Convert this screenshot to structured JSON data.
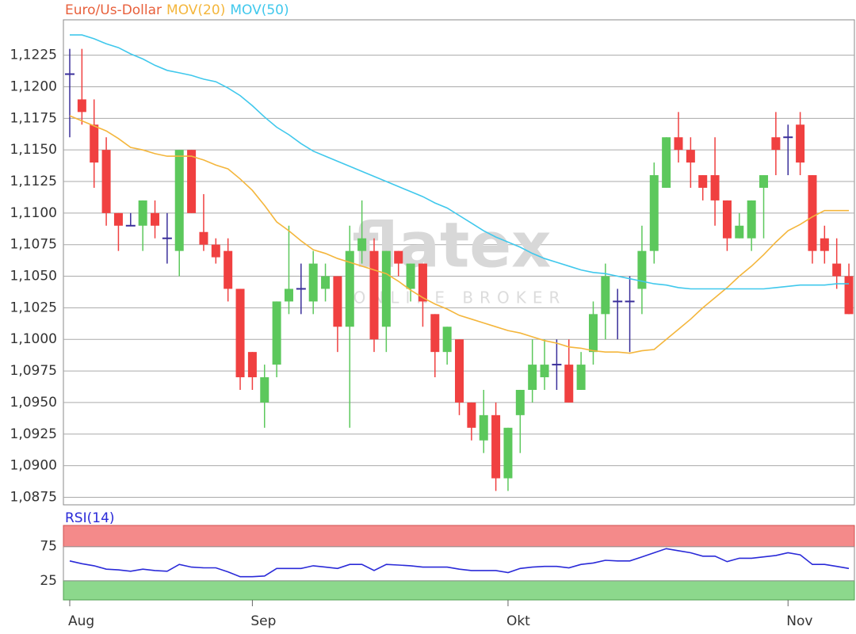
{
  "chart_data": [
    {
      "type": "candlestick",
      "ylim": [
        1.0869,
        1.1253
      ],
      "yticks": [
        {
          "value": 1.0875,
          "label": "1,0875"
        },
        {
          "value": 1.09,
          "label": "1,0900"
        },
        {
          "value": 1.0925,
          "label": "1,0925"
        },
        {
          "value": 1.095,
          "label": "1,0950"
        },
        {
          "value": 1.0975,
          "label": "1,0975"
        },
        {
          "value": 1.1,
          "label": "1,1000"
        },
        {
          "value": 1.1025,
          "label": "1,1025"
        },
        {
          "value": 1.105,
          "label": "1,1050"
        },
        {
          "value": 1.1075,
          "label": "1,1075"
        },
        {
          "value": 1.11,
          "label": "1,1100"
        },
        {
          "value": 1.1125,
          "label": "1,1125"
        },
        {
          "value": 1.115,
          "label": "1,1150"
        },
        {
          "value": 1.1175,
          "label": "1,1175"
        },
        {
          "value": 1.12,
          "label": "1,1200"
        },
        {
          "value": 1.1225,
          "label": "1,1225"
        }
      ],
      "grid": true,
      "watermark": {
        "logo": "flatex",
        "tagline": "ONLINE BROKER"
      },
      "series": [
        {
          "name": "Euro/Us-Dollar",
          "color": "#e8603c",
          "up_color": "#5cc85c",
          "down_color": "#f04040",
          "doji_color": "#3a2f9a",
          "open": [
            1.121,
            1.119,
            1.117,
            1.115,
            1.11,
            1.109,
            1.109,
            1.11,
            1.108,
            1.107,
            1.115,
            1.1085,
            1.1075,
            1.107,
            1.104,
            1.099,
            1.095,
            1.098,
            1.103,
            1.104,
            1.103,
            1.104,
            1.105,
            1.101,
            1.107,
            1.107,
            1.101,
            1.107,
            1.104,
            1.106,
            1.102,
            1.099,
            1.1,
            1.095,
            1.092,
            1.094,
            1.089,
            1.094,
            1.096,
            1.097,
            1.098,
            1.098,
            1.096,
            1.099,
            1.102,
            1.103,
            1.103,
            1.104,
            1.107,
            1.112,
            1.116,
            1.115,
            1.113,
            1.113,
            1.111,
            1.108,
            1.108,
            1.112,
            1.116,
            1.116,
            1.117,
            1.113,
            1.108,
            1.106,
            1.105
          ],
          "high": [
            1.123,
            1.123,
            1.119,
            1.116,
            1.11,
            1.11,
            1.111,
            1.111,
            1.11,
            1.115,
            1.115,
            1.1115,
            1.108,
            1.108,
            1.104,
            1.099,
            1.098,
            1.103,
            1.109,
            1.106,
            1.107,
            1.106,
            1.105,
            1.109,
            1.111,
            1.108,
            1.107,
            1.107,
            1.106,
            1.106,
            1.102,
            1.101,
            1.1,
            1.095,
            1.096,
            1.095,
            1.093,
            1.096,
            1.1,
            1.1,
            1.1,
            1.1,
            1.099,
            1.103,
            1.106,
            1.104,
            1.105,
            1.109,
            1.114,
            1.116,
            1.118,
            1.116,
            1.113,
            1.116,
            1.111,
            1.11,
            1.111,
            1.113,
            1.118,
            1.117,
            1.118,
            1.113,
            1.109,
            1.108,
            1.106
          ],
          "low": [
            1.116,
            1.117,
            1.112,
            1.109,
            1.107,
            1.109,
            1.107,
            1.108,
            1.106,
            1.105,
            1.11,
            1.107,
            1.106,
            1.103,
            1.096,
            1.096,
            1.093,
            1.097,
            1.102,
            1.102,
            1.102,
            1.103,
            1.099,
            1.093,
            1.106,
            1.099,
            1.099,
            1.105,
            1.103,
            1.101,
            1.097,
            1.098,
            1.094,
            1.092,
            1.091,
            1.088,
            1.088,
            1.091,
            1.095,
            1.096,
            1.096,
            1.095,
            1.096,
            1.098,
            1.1,
            1.1,
            1.099,
            1.102,
            1.106,
            1.112,
            1.114,
            1.112,
            1.111,
            1.109,
            1.107,
            1.108,
            1.107,
            1.108,
            1.113,
            1.113,
            1.113,
            1.106,
            1.106,
            1.104,
            1.102
          ],
          "close": [
            1.121,
            1.118,
            1.114,
            1.11,
            1.109,
            1.109,
            1.111,
            1.109,
            1.108,
            1.115,
            1.11,
            1.1075,
            1.1065,
            1.104,
            1.097,
            1.097,
            1.097,
            1.103,
            1.104,
            1.104,
            1.106,
            1.105,
            1.101,
            1.107,
            1.108,
            1.1,
            1.107,
            1.106,
            1.106,
            1.103,
            1.099,
            1.101,
            1.095,
            1.093,
            1.094,
            1.089,
            1.093,
            1.096,
            1.098,
            1.098,
            1.098,
            1.095,
            1.098,
            1.102,
            1.105,
            1.103,
            1.103,
            1.107,
            1.113,
            1.116,
            1.115,
            1.114,
            1.112,
            1.111,
            1.108,
            1.109,
            1.111,
            1.113,
            1.115,
            1.116,
            1.114,
            1.107,
            1.107,
            1.105,
            1.102
          ]
        },
        {
          "name": "MOV(20)",
          "color": "#f4b63c",
          "values": [
            1.1177,
            1.1173,
            1.1169,
            1.1165,
            1.1159,
            1.1152,
            1.115,
            1.1147,
            1.1145,
            1.1145,
            1.1145,
            1.1142,
            1.1138,
            1.1135,
            1.1127,
            1.1118,
            1.1106,
            1.1093,
            1.1086,
            1.1078,
            1.1071,
            1.1068,
            1.1064,
            1.1061,
            1.1058,
            1.1055,
            1.1052,
            1.1046,
            1.1039,
            1.1033,
            1.1028,
            1.1024,
            1.1019,
            1.1016,
            1.1013,
            1.101,
            1.1007,
            1.1005,
            1.1002,
            1.0999,
            1.0997,
            1.0994,
            1.0993,
            1.0991,
            1.099,
            1.099,
            1.0989,
            1.0991,
            1.0992,
            1.1,
            1.1008,
            1.1016,
            1.1025,
            1.1033,
            1.1041,
            1.105,
            1.1058,
            1.1067,
            1.1077,
            1.1086,
            1.1091,
            1.1097,
            1.1102,
            1.1102,
            1.1102
          ]
        },
        {
          "name": "MOV(50)",
          "color": "#40c8ec",
          "values": [
            1.1241,
            1.1241,
            1.1238,
            1.1234,
            1.1231,
            1.1226,
            1.1222,
            1.1217,
            1.1213,
            1.1211,
            1.1209,
            1.1206,
            1.1204,
            1.1199,
            1.1193,
            1.1185,
            1.1176,
            1.1168,
            1.1162,
            1.1155,
            1.1149,
            1.1145,
            1.1141,
            1.1137,
            1.1133,
            1.1129,
            1.1125,
            1.1121,
            1.1117,
            1.1113,
            1.1108,
            1.1104,
            1.1098,
            1.1092,
            1.1086,
            1.1081,
            1.1077,
            1.1073,
            1.1068,
            1.1064,
            1.1061,
            1.1058,
            1.1055,
            1.1053,
            1.1052,
            1.105,
            1.1048,
            1.1046,
            1.1044,
            1.1043,
            1.1041,
            1.104,
            1.104,
            1.104,
            1.104,
            1.104,
            1.104,
            1.104,
            1.1041,
            1.1042,
            1.1043,
            1.1043,
            1.1043,
            1.1044,
            1.1044
          ]
        }
      ]
    },
    {
      "type": "line",
      "ylim": [
        -3,
        106
      ],
      "yticks": [
        25,
        75
      ],
      "overbought": 75,
      "oversold": 25,
      "categories": [
        "Aug",
        null,
        null,
        null,
        null,
        null,
        null,
        null,
        null,
        null,
        null,
        null,
        null,
        null,
        null,
        "Sep",
        null,
        null,
        null,
        null,
        null,
        null,
        null,
        null,
        null,
        null,
        null,
        null,
        null,
        null,
        null,
        null,
        null,
        null,
        null,
        null,
        "Okt",
        null,
        null,
        null,
        null,
        null,
        null,
        null,
        null,
        null,
        null,
        null,
        null,
        null,
        null,
        null,
        null,
        null,
        null,
        null,
        null,
        null,
        null,
        "Nov",
        null,
        null,
        null,
        null,
        null
      ],
      "series": [
        {
          "name": "RSI(14)",
          "color": "#2a2ad8",
          "values": [
            54,
            50,
            47,
            42,
            41,
            39,
            42,
            40,
            39,
            49,
            45,
            44,
            44,
            38,
            31,
            31,
            32,
            43,
            43,
            43,
            47,
            45,
            43,
            49,
            49,
            40,
            49,
            48,
            47,
            45,
            45,
            45,
            42,
            40,
            40,
            40,
            37,
            43,
            45,
            46,
            46,
            44,
            49,
            51,
            55,
            54,
            54,
            60,
            66,
            72,
            69,
            66,
            61,
            61,
            53,
            58,
            58,
            60,
            62,
            66,
            63,
            49,
            49,
            46,
            43
          ]
        }
      ]
    }
  ]
}
